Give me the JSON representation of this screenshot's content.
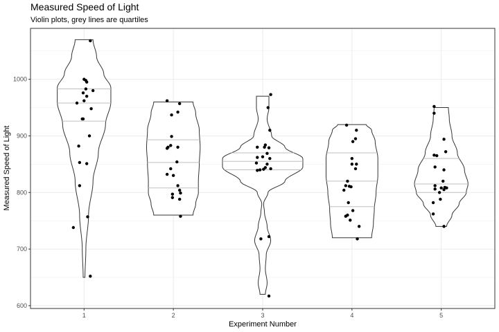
{
  "chart_data": {
    "type": "violin",
    "title": "Measured Speed of Light",
    "subtitle": "Violin plots, grey lines are quartiles",
    "xlabel": "Experiment Number",
    "ylabel": "Measured Speed of Light",
    "categories": [
      "1",
      "2",
      "3",
      "4",
      "5"
    ],
    "yticks": [
      600,
      700,
      800,
      900,
      1000
    ],
    "xlim": [
      0.4,
      5.6
    ],
    "ylim": [
      595,
      1090
    ],
    "grid": true,
    "colors": {
      "outline": "#333333",
      "quartile": "#bfbfbf",
      "point": "#000000",
      "grid": "#ebebeb",
      "panel_border": "#333333"
    },
    "groups": [
      {
        "category": "1",
        "quartiles": [
          926,
          958,
          983
        ],
        "profile": [
          [
            650,
            0.01
          ],
          [
            700,
            0.02
          ],
          [
            760,
            0.05
          ],
          [
            820,
            0.1
          ],
          [
            870,
            0.16
          ],
          [
            920,
            0.24
          ],
          [
            960,
            0.3
          ],
          [
            985,
            0.3
          ],
          [
            1010,
            0.22
          ],
          [
            1040,
            0.14
          ],
          [
            1070,
            0.1
          ]
        ],
        "points": [
          [
            1.0,
            1000
          ],
          [
            1.02,
            998
          ],
          [
            1.03,
            995
          ],
          [
            1.02,
            983
          ],
          [
            1.1,
            980
          ],
          [
            0.99,
            976
          ],
          [
            1.03,
            970
          ],
          [
            1.0,
            962
          ],
          [
            0.92,
            958
          ],
          [
            0.98,
            930
          ],
          [
            0.99,
            930
          ],
          [
            1.08,
            948
          ],
          [
            1.06,
            900
          ],
          [
            0.94,
            882
          ],
          [
            0.95,
            853
          ],
          [
            1.03,
            851
          ],
          [
            0.95,
            812
          ],
          [
            1.04,
            757
          ],
          [
            0.88,
            738
          ],
          [
            1.07,
            652
          ],
          [
            1.07,
            1068
          ]
        ]
      },
      {
        "category": "2",
        "quartiles": [
          808,
          853,
          893
        ],
        "profile": [
          [
            760,
            0.22
          ],
          [
            780,
            0.25
          ],
          [
            800,
            0.28
          ],
          [
            820,
            0.28
          ],
          [
            850,
            0.29
          ],
          [
            880,
            0.3
          ],
          [
            910,
            0.29
          ],
          [
            940,
            0.25
          ],
          [
            960,
            0.22
          ]
        ],
        "points": [
          [
            1.93,
            962
          ],
          [
            2.07,
            957
          ],
          [
            2.05,
            942
          ],
          [
            1.98,
            937
          ],
          [
            1.98,
            899
          ],
          [
            1.97,
            883
          ],
          [
            1.94,
            880
          ],
          [
            1.93,
            878
          ],
          [
            2.05,
            880
          ],
          [
            2.04,
            854
          ],
          [
            1.97,
            842
          ],
          [
            2.0,
            830
          ],
          [
            1.93,
            832
          ],
          [
            2.05,
            812
          ],
          [
            2.07,
            804
          ],
          [
            2.08,
            799
          ],
          [
            2.07,
            788
          ],
          [
            1.99,
            797
          ],
          [
            1.99,
            791
          ],
          [
            2.08,
            758
          ]
        ]
      },
      {
        "category": "3",
        "quartiles": [
          840,
          855,
          870
        ],
        "profile": [
          [
            620,
            0.03
          ],
          [
            640,
            0.05
          ],
          [
            665,
            0.03
          ],
          [
            690,
            0.04
          ],
          [
            715,
            0.09
          ],
          [
            740,
            0.05
          ],
          [
            765,
            0.02
          ],
          [
            780,
            0.01
          ],
          [
            800,
            0.06
          ],
          [
            820,
            0.25
          ],
          [
            845,
            0.45
          ],
          [
            860,
            0.45
          ],
          [
            880,
            0.25
          ],
          [
            900,
            0.1
          ],
          [
            930,
            0.05
          ],
          [
            950,
            0.07
          ],
          [
            970,
            0.07
          ]
        ],
        "points": [
          [
            3.09,
            973
          ],
          [
            3.06,
            950
          ],
          [
            3.08,
            910
          ],
          [
            3.03,
            884
          ],
          [
            3.02,
            880
          ],
          [
            2.94,
            880
          ],
          [
            3.07,
            879
          ],
          [
            3.05,
            869
          ],
          [
            3.0,
            863
          ],
          [
            2.94,
            862
          ],
          [
            3.08,
            860
          ],
          [
            2.93,
            852
          ],
          [
            3.05,
            850
          ],
          [
            3.03,
            844
          ],
          [
            3.09,
            842
          ],
          [
            2.97,
            840
          ],
          [
            3.01,
            841
          ],
          [
            2.94,
            839
          ],
          [
            3.07,
            722
          ],
          [
            2.98,
            718
          ],
          [
            3.07,
            617
          ]
        ]
      },
      {
        "category": "4",
        "quartiles": [
          775,
          820,
          870
        ],
        "profile": [
          [
            720,
            0.22
          ],
          [
            745,
            0.24
          ],
          [
            770,
            0.25
          ],
          [
            800,
            0.27
          ],
          [
            830,
            0.29
          ],
          [
            860,
            0.29
          ],
          [
            890,
            0.26
          ],
          [
            910,
            0.22
          ],
          [
            920,
            0.16
          ]
        ],
        "points": [
          [
            3.94,
            919
          ],
          [
            4.05,
            910
          ],
          [
            4.04,
            895
          ],
          [
            4.01,
            890
          ],
          [
            4.0,
            860
          ],
          [
            4.05,
            850
          ],
          [
            4.0,
            850
          ],
          [
            4.04,
            842
          ],
          [
            3.95,
            820
          ],
          [
            3.93,
            812
          ],
          [
            3.97,
            811
          ],
          [
            3.99,
            810
          ],
          [
            3.91,
            804
          ],
          [
            3.96,
            782
          ],
          [
            4.01,
            768
          ],
          [
            3.95,
            760
          ],
          [
            3.93,
            758
          ],
          [
            3.98,
            751
          ],
          [
            4.08,
            740
          ],
          [
            4.06,
            718
          ]
        ]
      },
      {
        "category": "5",
        "quartiles": [
          800,
          815,
          860
        ],
        "profile": [
          [
            740,
            0.06
          ],
          [
            760,
            0.12
          ],
          [
            780,
            0.2
          ],
          [
            800,
            0.28
          ],
          [
            815,
            0.3
          ],
          [
            840,
            0.26
          ],
          [
            870,
            0.18
          ],
          [
            900,
            0.12
          ],
          [
            930,
            0.09
          ],
          [
            950,
            0.08
          ]
        ],
        "points": [
          [
            4.92,
            952
          ],
          [
            4.92,
            940
          ],
          [
            5.03,
            894
          ],
          [
            5.05,
            872
          ],
          [
            4.92,
            866
          ],
          [
            4.95,
            865
          ],
          [
            4.93,
            845
          ],
          [
            5.03,
            840
          ],
          [
            5.02,
            820
          ],
          [
            5.04,
            809
          ],
          [
            4.93,
            812
          ],
          [
            4.93,
            806
          ],
          [
            5.0,
            808
          ],
          [
            5.06,
            808
          ],
          [
            5.03,
            805
          ],
          [
            4.98,
            800
          ],
          [
            4.99,
            788
          ],
          [
            4.91,
            782
          ],
          [
            4.91,
            762
          ],
          [
            5.03,
            740
          ]
        ]
      }
    ]
  }
}
